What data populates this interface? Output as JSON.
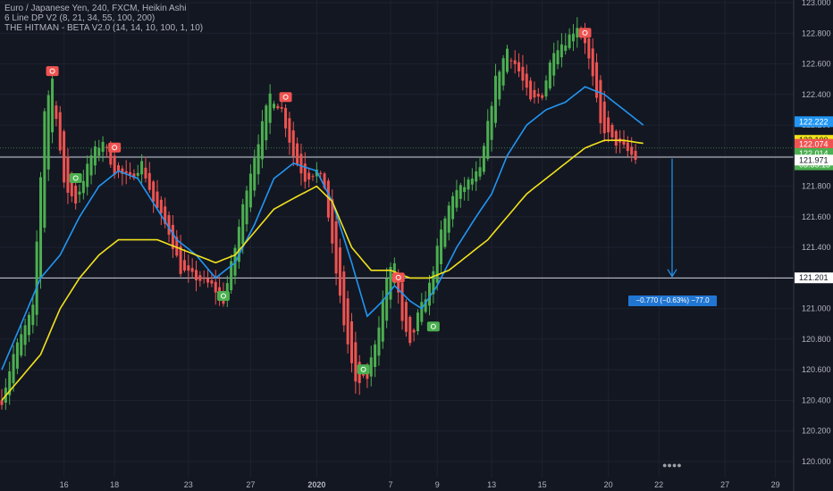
{
  "header": {
    "symbol_line": "Euro / Japanese Yen, 240, FXCM, Heikin Ashi",
    "indicator1": "6 Line DP V2 (8, 21, 34, 55, 100, 200)",
    "indicator2": "THE HITMAN - BETA V2.0 (14, 14, 10, 100, 1, 10)"
  },
  "measure_label": "−0.770 (−0.63%) −77.0",
  "colors": {
    "background": "#131722",
    "bull": "#4caf50",
    "bear": "#ef5350",
    "ma_fast": "#2196f3",
    "ma_slow": "#f2e21c",
    "measure_blue": "#2176d2"
  },
  "chart_data": {
    "type": "candlestick",
    "title": "Euro / Japanese Yen, 240, FXCM, Heikin Ashi",
    "y_range": [
      119.9,
      123.05
    ],
    "y_ticks": [
      120.0,
      120.2,
      120.4,
      120.6,
      120.8,
      121.0,
      121.2,
      121.4,
      121.6,
      121.8,
      122.0,
      122.2,
      122.4,
      122.6,
      122.8,
      123.0
    ],
    "x_tick_labels": [
      "16",
      "18",
      "23",
      "27",
      "2020",
      "7",
      "9",
      "13",
      "15",
      "20",
      "22",
      "27",
      "29"
    ],
    "x_tick_candle_index": [
      16,
      29,
      48,
      64,
      81,
      100,
      112,
      126,
      139,
      156,
      169,
      186,
      199
    ],
    "price_tags": [
      {
        "label": "122.222",
        "value": 122.222,
        "color": "#2196f3"
      },
      {
        "label": "122.100",
        "value": 122.1,
        "color": "#f2e21c"
      },
      {
        "label": "122.074",
        "value": 122.074,
        "color": "#ef5350"
      },
      {
        "label": "122.014",
        "value": 122.014,
        "color": "#4caf50"
      },
      {
        "label": "03:35:13",
        "value": 121.94,
        "color": "#4caf50"
      },
      {
        "label": "121.971",
        "value": 121.971,
        "color": "#ffffff"
      },
      {
        "label": "121.201",
        "value": 121.201,
        "color": "#ffffff"
      }
    ],
    "horizontal_lines": [
      121.99,
      121.2
    ],
    "measure": {
      "from": 121.98,
      "to": 121.21,
      "change": -0.77,
      "percent": -0.63,
      "pips": -77.0
    },
    "anchors": [
      [
        0,
        120.4
      ],
      [
        3,
        120.7
      ],
      [
        8,
        121.0
      ],
      [
        11,
        122.3
      ],
      [
        13,
        122.5
      ],
      [
        16,
        121.8
      ],
      [
        19,
        121.7
      ],
      [
        23,
        122.0
      ],
      [
        26,
        122.1
      ],
      [
        29,
        121.9
      ],
      [
        33,
        121.85
      ],
      [
        36,
        121.95
      ],
      [
        39,
        121.7
      ],
      [
        43,
        121.5
      ],
      [
        46,
        121.25
      ],
      [
        50,
        121.2
      ],
      [
        54,
        121.15
      ],
      [
        57,
        121.05
      ],
      [
        60,
        121.4
      ],
      [
        63,
        121.8
      ],
      [
        66,
        122.1
      ],
      [
        69,
        122.4
      ],
      [
        72,
        122.3
      ],
      [
        75,
        122.0
      ],
      [
        78,
        121.85
      ],
      [
        81,
        121.9
      ],
      [
        83,
        121.8
      ],
      [
        85,
        121.4
      ],
      [
        88,
        120.9
      ],
      [
        91,
        120.5
      ],
      [
        94,
        120.55
      ],
      [
        97,
        120.9
      ],
      [
        99,
        121.2
      ],
      [
        101,
        121.3
      ],
      [
        103,
        120.9
      ],
      [
        105,
        120.75
      ],
      [
        107,
        120.95
      ],
      [
        110,
        121.15
      ],
      [
        113,
        121.5
      ],
      [
        116,
        121.75
      ],
      [
        119,
        121.8
      ],
      [
        121,
        121.85
      ],
      [
        123,
        121.9
      ],
      [
        125,
        122.2
      ],
      [
        127,
        122.5
      ],
      [
        130,
        122.7
      ],
      [
        133,
        122.55
      ],
      [
        136,
        122.35
      ],
      [
        139,
        122.4
      ],
      [
        142,
        122.7
      ],
      [
        145,
        122.75
      ],
      [
        148,
        122.85
      ],
      [
        150,
        122.75
      ],
      [
        152,
        122.5
      ],
      [
        154,
        122.2
      ],
      [
        157,
        122.1
      ],
      [
        160,
        122.05
      ],
      [
        163,
        121.98
      ]
    ],
    "ma_fast": [
      [
        0,
        120.6
      ],
      [
        10,
        121.2
      ],
      [
        15,
        121.35
      ],
      [
        20,
        121.6
      ],
      [
        25,
        121.8
      ],
      [
        30,
        121.9
      ],
      [
        35,
        121.85
      ],
      [
        40,
        121.65
      ],
      [
        45,
        121.45
      ],
      [
        50,
        121.35
      ],
      [
        55,
        121.2
      ],
      [
        60,
        121.3
      ],
      [
        65,
        121.55
      ],
      [
        70,
        121.85
      ],
      [
        75,
        121.95
      ],
      [
        81,
        121.9
      ],
      [
        85,
        121.7
      ],
      [
        90,
        121.3
      ],
      [
        94,
        120.95
      ],
      [
        98,
        121.05
      ],
      [
        101,
        121.15
      ],
      [
        105,
        121.05
      ],
      [
        108,
        121.0
      ],
      [
        112,
        121.15
      ],
      [
        117,
        121.4
      ],
      [
        122,
        121.6
      ],
      [
        126,
        121.75
      ],
      [
        130,
        122.0
      ],
      [
        135,
        122.2
      ],
      [
        140,
        122.3
      ],
      [
        145,
        122.35
      ],
      [
        150,
        122.45
      ],
      [
        155,
        122.4
      ],
      [
        160,
        122.3
      ],
      [
        165,
        122.2
      ]
    ],
    "ma_slow": [
      [
        0,
        120.4
      ],
      [
        10,
        120.7
      ],
      [
        15,
        121.0
      ],
      [
        20,
        121.2
      ],
      [
        25,
        121.35
      ],
      [
        30,
        121.45
      ],
      [
        35,
        121.45
      ],
      [
        40,
        121.45
      ],
      [
        45,
        121.4
      ],
      [
        50,
        121.35
      ],
      [
        55,
        121.3
      ],
      [
        60,
        121.35
      ],
      [
        65,
        121.5
      ],
      [
        70,
        121.65
      ],
      [
        75,
        121.72
      ],
      [
        81,
        121.8
      ],
      [
        85,
        121.7
      ],
      [
        90,
        121.4
      ],
      [
        95,
        121.25
      ],
      [
        100,
        121.25
      ],
      [
        105,
        121.2
      ],
      [
        110,
        121.2
      ],
      [
        115,
        121.25
      ],
      [
        120,
        121.35
      ],
      [
        125,
        121.45
      ],
      [
        130,
        121.6
      ],
      [
        135,
        121.75
      ],
      [
        140,
        121.85
      ],
      [
        145,
        121.95
      ],
      [
        150,
        122.05
      ],
      [
        155,
        122.1
      ],
      [
        160,
        122.1
      ],
      [
        165,
        122.08
      ]
    ],
    "signals": [
      {
        "candle": 13,
        "value": 122.55,
        "kind": "sell"
      },
      {
        "candle": 19,
        "value": 121.85,
        "kind": "buy"
      },
      {
        "candle": 29,
        "value": 122.05,
        "kind": "sell"
      },
      {
        "candle": 57,
        "value": 121.08,
        "kind": "buy"
      },
      {
        "candle": 73,
        "value": 122.38,
        "kind": "sell"
      },
      {
        "candle": 93,
        "value": 120.6,
        "kind": "buy"
      },
      {
        "candle": 102,
        "value": 121.2,
        "kind": "sell"
      },
      {
        "candle": 111,
        "value": 120.88,
        "kind": "buy"
      },
      {
        "candle": 150,
        "value": 122.8,
        "kind": "sell"
      }
    ]
  }
}
